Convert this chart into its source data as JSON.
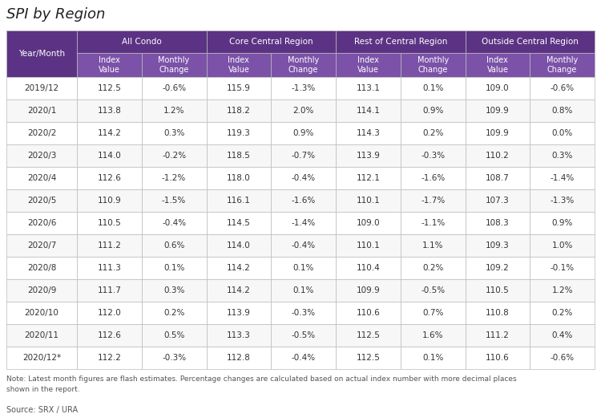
{
  "title": "SPI by Region",
  "note": "Note: Latest month figures are flash estimates. Percentage changes are calculated based on actual index number with more decimal places\nshown in the report.",
  "source": "Source: SRX / URA",
  "col_groups": [
    "All Condo",
    "Core Central Region",
    "Rest of Central Region",
    "Outside Central Region"
  ],
  "col_subheaders": [
    "Index\nValue",
    "Monthly\nChange"
  ],
  "row_labels": [
    "2019/12",
    "2020/1",
    "2020/2",
    "2020/3",
    "2020/4",
    "2020/5",
    "2020/6",
    "2020/7",
    "2020/8",
    "2020/9",
    "2020/10",
    "2020/11",
    "2020/12*"
  ],
  "data": [
    [
      "112.5",
      "-0.6%",
      "115.9",
      "-1.3%",
      "113.1",
      "0.1%",
      "109.0",
      "-0.6%"
    ],
    [
      "113.8",
      "1.2%",
      "118.2",
      "2.0%",
      "114.1",
      "0.9%",
      "109.9",
      "0.8%"
    ],
    [
      "114.2",
      "0.3%",
      "119.3",
      "0.9%",
      "114.3",
      "0.2%",
      "109.9",
      "0.0%"
    ],
    [
      "114.0",
      "-0.2%",
      "118.5",
      "-0.7%",
      "113.9",
      "-0.3%",
      "110.2",
      "0.3%"
    ],
    [
      "112.6",
      "-1.2%",
      "118.0",
      "-0.4%",
      "112.1",
      "-1.6%",
      "108.7",
      "-1.4%"
    ],
    [
      "110.9",
      "-1.5%",
      "116.1",
      "-1.6%",
      "110.1",
      "-1.7%",
      "107.3",
      "-1.3%"
    ],
    [
      "110.5",
      "-0.4%",
      "114.5",
      "-1.4%",
      "109.0",
      "-1.1%",
      "108.3",
      "0.9%"
    ],
    [
      "111.2",
      "0.6%",
      "114.0",
      "-0.4%",
      "110.1",
      "1.1%",
      "109.3",
      "1.0%"
    ],
    [
      "111.3",
      "0.1%",
      "114.2",
      "0.1%",
      "110.4",
      "0.2%",
      "109.2",
      "-0.1%"
    ],
    [
      "111.7",
      "0.3%",
      "114.2",
      "0.1%",
      "109.9",
      "-0.5%",
      "110.5",
      "1.2%"
    ],
    [
      "112.0",
      "0.2%",
      "113.9",
      "-0.3%",
      "110.6",
      "0.7%",
      "110.8",
      "0.2%"
    ],
    [
      "112.6",
      "0.5%",
      "113.3",
      "-0.5%",
      "112.5",
      "1.6%",
      "111.2",
      "0.4%"
    ],
    [
      "112.2",
      "-0.3%",
      "112.8",
      "-0.4%",
      "112.5",
      "0.1%",
      "110.6",
      "-0.6%"
    ]
  ],
  "purple_dark": "#5C3384",
  "purple_mid": "#7B52A8",
  "purple_light": "#8B62B8",
  "white": "#FFFFFF",
  "row_alt1": "#FFFFFF",
  "row_alt2": "#F7F7F7",
  "border_color": "#BBBBBB",
  "title_color": "#222222",
  "data_text_color": "#333333",
  "note_color": "#555555",
  "fig_width": 7.5,
  "fig_height": 5.21,
  "dpi": 100
}
